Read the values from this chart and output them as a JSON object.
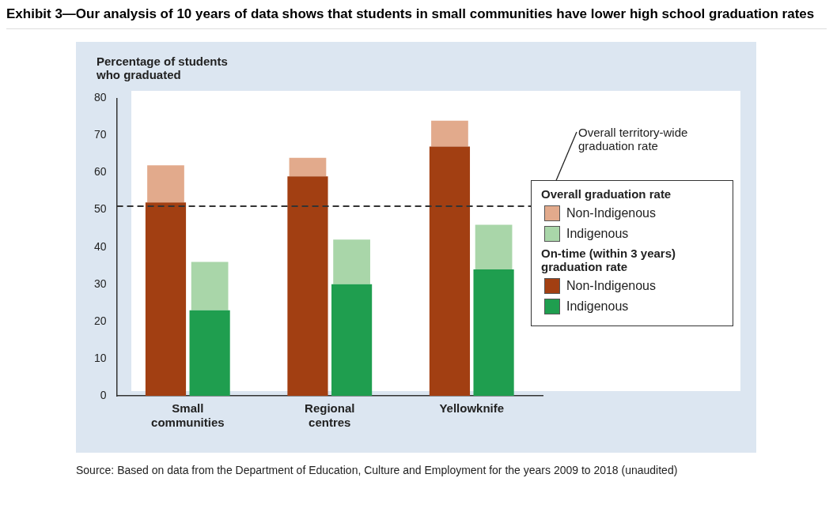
{
  "chart_data": {
    "type": "bar",
    "title": "Exhibit 3—Our analysis of 10 years of data shows that students in small communities have lower high school graduation rates",
    "ylabel": "Percentage of students who graduated",
    "categories": [
      "Small communities",
      "Regional centres",
      "Yellowknife"
    ],
    "series": [
      {
        "name": "Non-Indigenous",
        "color": "#a23f12",
        "values": [
          52,
          59,
          67
        ]
      },
      {
        "name": "Indigenous",
        "color": "#1f9e4f",
        "values": [
          23,
          30,
          34
        ]
      },
      {
        "name": "Non-Indigenous",
        "color": "#e2aa8c",
        "values": [
          10,
          5,
          7
        ],
        "base": [
          52,
          59,
          67
        ]
      },
      {
        "name": "Indigenous",
        "color": "#a9d6a9",
        "values": [
          13,
          12,
          12
        ],
        "base": [
          23,
          30,
          34
        ]
      }
    ],
    "ylim": [
      0,
      80
    ],
    "yticks": [
      0,
      10,
      20,
      30,
      40,
      50,
      60,
      70,
      80
    ],
    "grid": false,
    "legend": "right",
    "ref_lines": [
      {
        "axis": "y",
        "value": 51,
        "label": "Overall territory-wide graduation rate",
        "line_style": "dashed",
        "color": "#333333"
      }
    ],
    "annotations": [
      "Overall graduation rate",
      "On-time (within 3 years) graduation rate",
      "Source: Based on data from the Department of Education, Culture and Employment for the years 2009 to 2018 (unaudited)"
    ]
  }
}
